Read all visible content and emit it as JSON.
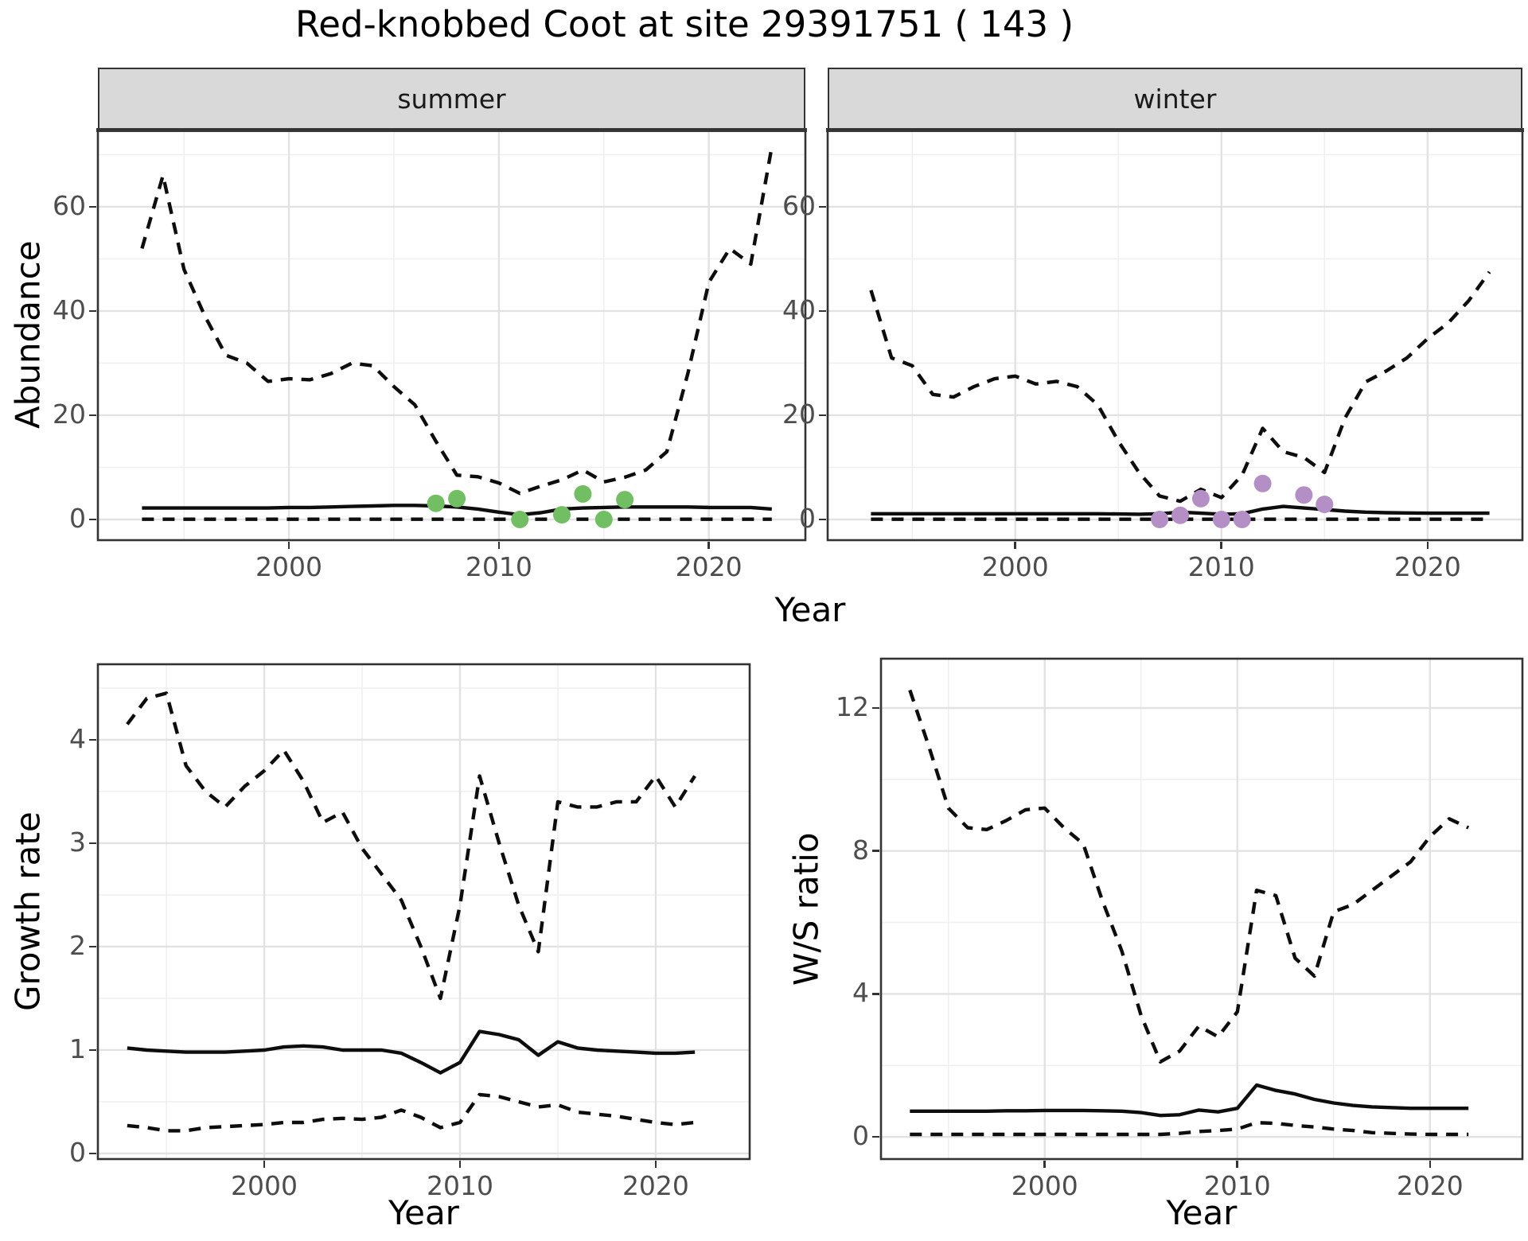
{
  "title": "Red-knobbed Coot at site 29391751 ( 143 )",
  "top_axis": {
    "xlabel": "Year",
    "ylabel": "Abundance"
  },
  "colors": {
    "summer_points": "#72bf63",
    "winter_points": "#b48fc6",
    "line": "#0d0d0d",
    "axis_text": "#4d4d4d",
    "strip_bg": "#d9d9d9",
    "panel_border": "#333333",
    "grid_major": "#e2e2e2",
    "grid_minor": "#f0f0f0"
  },
  "chart_data": [
    {
      "id": "summer",
      "type": "line",
      "strip_label": "summer",
      "xlabel": "Year",
      "ylabel": "Abundance",
      "x": [
        1993,
        1994,
        1995,
        1996,
        1997,
        1998,
        1999,
        2000,
        2001,
        2002,
        2003,
        2004,
        2005,
        2006,
        2007,
        2008,
        2009,
        2010,
        2011,
        2012,
        2013,
        2014,
        2015,
        2016,
        2017,
        2018,
        2019,
        2020,
        2021,
        2022,
        2023
      ],
      "series": [
        {
          "name": "upper-ci",
          "style": "dashed",
          "values": [
            52,
            66,
            48,
            39,
            31.5,
            30,
            26.5,
            27,
            26.8,
            28,
            30,
            29.5,
            25.5,
            22,
            15,
            8.5,
            8.2,
            7,
            5,
            6.4,
            7.6,
            9.5,
            7.2,
            8.1,
            9.5,
            13,
            28,
            45.5,
            52,
            49,
            71.5
          ]
        },
        {
          "name": "median",
          "style": "solid",
          "values": [
            2.2,
            2.2,
            2.2,
            2.2,
            2.2,
            2.2,
            2.2,
            2.3,
            2.3,
            2.4,
            2.5,
            2.6,
            2.7,
            2.7,
            2.6,
            2.4,
            2.0,
            1.4,
            0.9,
            1.3,
            2.0,
            2.2,
            2.3,
            2.4,
            2.4,
            2.4,
            2.4,
            2.3,
            2.3,
            2.3,
            2.0
          ]
        },
        {
          "name": "lower-ci",
          "style": "dashed",
          "values": [
            0.05,
            0.05,
            0.05,
            0.05,
            0.05,
            0.05,
            0.05,
            0.05,
            0.05,
            0.05,
            0.05,
            0.05,
            0.05,
            0.05,
            0.05,
            0.05,
            0.05,
            0.05,
            0.05,
            0.05,
            0.05,
            0.05,
            0.05,
            0.05,
            0.05,
            0.05,
            0.05,
            0.05,
            0.05,
            0.05,
            0.05
          ]
        }
      ],
      "points": {
        "name": "summer-observations",
        "color": "#72bf63",
        "data": [
          [
            2007,
            3.1
          ],
          [
            2008,
            4.0
          ],
          [
            2011,
            0
          ],
          [
            2013,
            0.9
          ],
          [
            2014,
            4.9
          ],
          [
            2015,
            0
          ],
          [
            2016,
            3.8
          ]
        ]
      },
      "xlim": [
        1990.9,
        2024.6
      ],
      "ylim": [
        -3.97,
        74.8
      ],
      "xticks": [
        2000,
        2010,
        2020
      ],
      "xminor": [
        1995,
        2005,
        2015
      ],
      "yticks": [
        0,
        20,
        40,
        60
      ],
      "yminor": [
        10,
        30,
        50,
        70
      ]
    },
    {
      "id": "winter",
      "type": "line",
      "strip_label": "winter",
      "xlabel": "Year",
      "ylabel": "Abundance",
      "x": [
        1993,
        1994,
        1995,
        1996,
        1997,
        1998,
        1999,
        2000,
        2001,
        2002,
        2003,
        2004,
        2005,
        2006,
        2007,
        2008,
        2009,
        2010,
        2011,
        2012,
        2013,
        2014,
        2015,
        2016,
        2017,
        2018,
        2019,
        2020,
        2021,
        2022,
        2023
      ],
      "series": [
        {
          "name": "upper-ci",
          "style": "dashed",
          "values": [
            44,
            31,
            29.5,
            24,
            23.5,
            25.5,
            27,
            27.5,
            26,
            26.5,
            25.5,
            22,
            15,
            9,
            4.5,
            3.5,
            5.8,
            4.2,
            8.5,
            17.5,
            13,
            11.9,
            9,
            19.5,
            26.4,
            28.5,
            31,
            34.7,
            37.7,
            42,
            47.5
          ]
        },
        {
          "name": "median",
          "style": "solid",
          "values": [
            1.1,
            1.1,
            1.1,
            1.1,
            1.1,
            1.1,
            1.1,
            1.1,
            1.1,
            1.1,
            1.1,
            1.1,
            1.05,
            1.0,
            1.1,
            1.4,
            1.2,
            1.0,
            1.1,
            2.0,
            2.5,
            2.2,
            1.9,
            1.6,
            1.4,
            1.3,
            1.25,
            1.2,
            1.2,
            1.2,
            1.2
          ]
        },
        {
          "name": "lower-ci",
          "style": "dashed",
          "values": [
            0.05,
            0.05,
            0.05,
            0.05,
            0.05,
            0.05,
            0.05,
            0.05,
            0.05,
            0.05,
            0.05,
            0.05,
            0.05,
            0.05,
            0.05,
            0.05,
            0.05,
            0.05,
            0.05,
            0.05,
            0.05,
            0.05,
            0.05,
            0.05,
            0.05,
            0.05,
            0.05,
            0.05,
            0.05,
            0.05,
            0.05
          ]
        }
      ],
      "points": {
        "name": "winter-observations",
        "color": "#b48fc6",
        "data": [
          [
            2007,
            0
          ],
          [
            2008,
            0.8
          ],
          [
            2009,
            4.0
          ],
          [
            2010,
            0
          ],
          [
            2011,
            0
          ],
          [
            2012,
            6.9
          ],
          [
            2014,
            4.7
          ],
          [
            2015,
            2.9
          ]
        ]
      },
      "xlim": [
        1990.9,
        2024.6
      ],
      "ylim": [
        -3.97,
        74.8
      ],
      "xticks": [
        2000,
        2010,
        2020
      ],
      "xminor": [
        1995,
        2005,
        2015
      ],
      "yticks": [
        0,
        20,
        40,
        60
      ],
      "yminor": [
        10,
        30,
        50,
        70
      ]
    },
    {
      "id": "growth",
      "type": "line",
      "strip_label": "",
      "xlabel": "Year",
      "ylabel": "Growth rate",
      "x": [
        1993,
        1994,
        1995,
        1996,
        1997,
        1998,
        1999,
        2000,
        2001,
        2002,
        2003,
        2004,
        2005,
        2006,
        2007,
        2008,
        2009,
        2010,
        2011,
        2012,
        2013,
        2014,
        2015,
        2016,
        2017,
        2018,
        2019,
        2020,
        2021,
        2022
      ],
      "series": [
        {
          "name": "upper-ci",
          "style": "dashed",
          "values": [
            4.15,
            4.4,
            4.45,
            3.75,
            3.5,
            3.35,
            3.55,
            3.7,
            3.9,
            3.6,
            3.2,
            3.3,
            2.95,
            2.7,
            2.45,
            2.0,
            1.5,
            2.4,
            3.65,
            3.0,
            2.4,
            1.95,
            3.4,
            3.35,
            3.35,
            3.4,
            3.4,
            3.65,
            3.35,
            3.65
          ]
        },
        {
          "name": "median",
          "style": "solid",
          "values": [
            1.02,
            1.0,
            0.99,
            0.98,
            0.98,
            0.98,
            0.99,
            1.0,
            1.03,
            1.04,
            1.03,
            1.0,
            1.0,
            1.0,
            0.97,
            0.88,
            0.78,
            0.88,
            1.18,
            1.15,
            1.1,
            0.95,
            1.08,
            1.02,
            1.0,
            0.99,
            0.98,
            0.97,
            0.97,
            0.98
          ]
        },
        {
          "name": "lower-ci",
          "style": "dashed",
          "values": [
            0.27,
            0.25,
            0.22,
            0.22,
            0.25,
            0.26,
            0.27,
            0.28,
            0.3,
            0.3,
            0.33,
            0.34,
            0.33,
            0.35,
            0.42,
            0.35,
            0.25,
            0.3,
            0.57,
            0.55,
            0.5,
            0.45,
            0.47,
            0.4,
            0.38,
            0.36,
            0.33,
            0.3,
            0.28,
            0.3
          ]
        }
      ],
      "xlim": [
        1991.5,
        2024.8
      ],
      "ylim": [
        -0.054,
        4.73
      ],
      "xticks": [
        2000,
        2010,
        2020
      ],
      "xminor": [
        1995,
        2005,
        2015
      ],
      "yticks": [
        0,
        1,
        2,
        3,
        4
      ],
      "yminor": [
        0.5,
        1.5,
        2.5,
        3.5,
        4.5
      ]
    },
    {
      "id": "ws",
      "type": "line",
      "strip_label": "",
      "xlabel": "Year",
      "ylabel": "W/S ratio",
      "x": [
        1993,
        1994,
        1995,
        1996,
        1997,
        1998,
        1999,
        2000,
        2001,
        2002,
        2003,
        2004,
        2005,
        2006,
        2007,
        2008,
        2009,
        2010,
        2011,
        2012,
        2013,
        2014,
        2015,
        2016,
        2017,
        2018,
        2019,
        2020,
        2021,
        2022
      ],
      "series": [
        {
          "name": "upper-ci",
          "style": "dashed",
          "values": [
            12.5,
            10.9,
            9.2,
            8.65,
            8.6,
            8.85,
            9.15,
            9.2,
            8.65,
            8.2,
            6.6,
            5.2,
            3.4,
            2.1,
            2.4,
            3.1,
            2.8,
            3.5,
            6.9,
            6.75,
            5.0,
            4.5,
            6.3,
            6.5,
            6.9,
            7.3,
            7.7,
            8.4,
            8.9,
            8.65
          ]
        },
        {
          "name": "median",
          "style": "solid",
          "values": [
            0.72,
            0.72,
            0.72,
            0.72,
            0.72,
            0.73,
            0.73,
            0.74,
            0.74,
            0.74,
            0.73,
            0.72,
            0.68,
            0.6,
            0.62,
            0.75,
            0.7,
            0.8,
            1.45,
            1.3,
            1.2,
            1.05,
            0.95,
            0.88,
            0.84,
            0.82,
            0.8,
            0.8,
            0.8,
            0.8
          ]
        },
        {
          "name": "lower-ci",
          "style": "dashed",
          "values": [
            0.07,
            0.07,
            0.07,
            0.07,
            0.07,
            0.07,
            0.07,
            0.07,
            0.07,
            0.07,
            0.07,
            0.07,
            0.07,
            0.07,
            0.1,
            0.15,
            0.18,
            0.22,
            0.4,
            0.38,
            0.32,
            0.28,
            0.22,
            0.18,
            0.12,
            0.1,
            0.08,
            0.07,
            0.07,
            0.07
          ]
        }
      ],
      "xlim": [
        1991.5,
        2024.8
      ],
      "ylim": [
        -0.62,
        13.38
      ],
      "xticks": [
        2000,
        2010,
        2020
      ],
      "xminor": [
        1995,
        2005,
        2015
      ],
      "yticks": [
        0,
        4,
        8,
        12
      ],
      "yminor": [
        2,
        6,
        10
      ]
    }
  ]
}
